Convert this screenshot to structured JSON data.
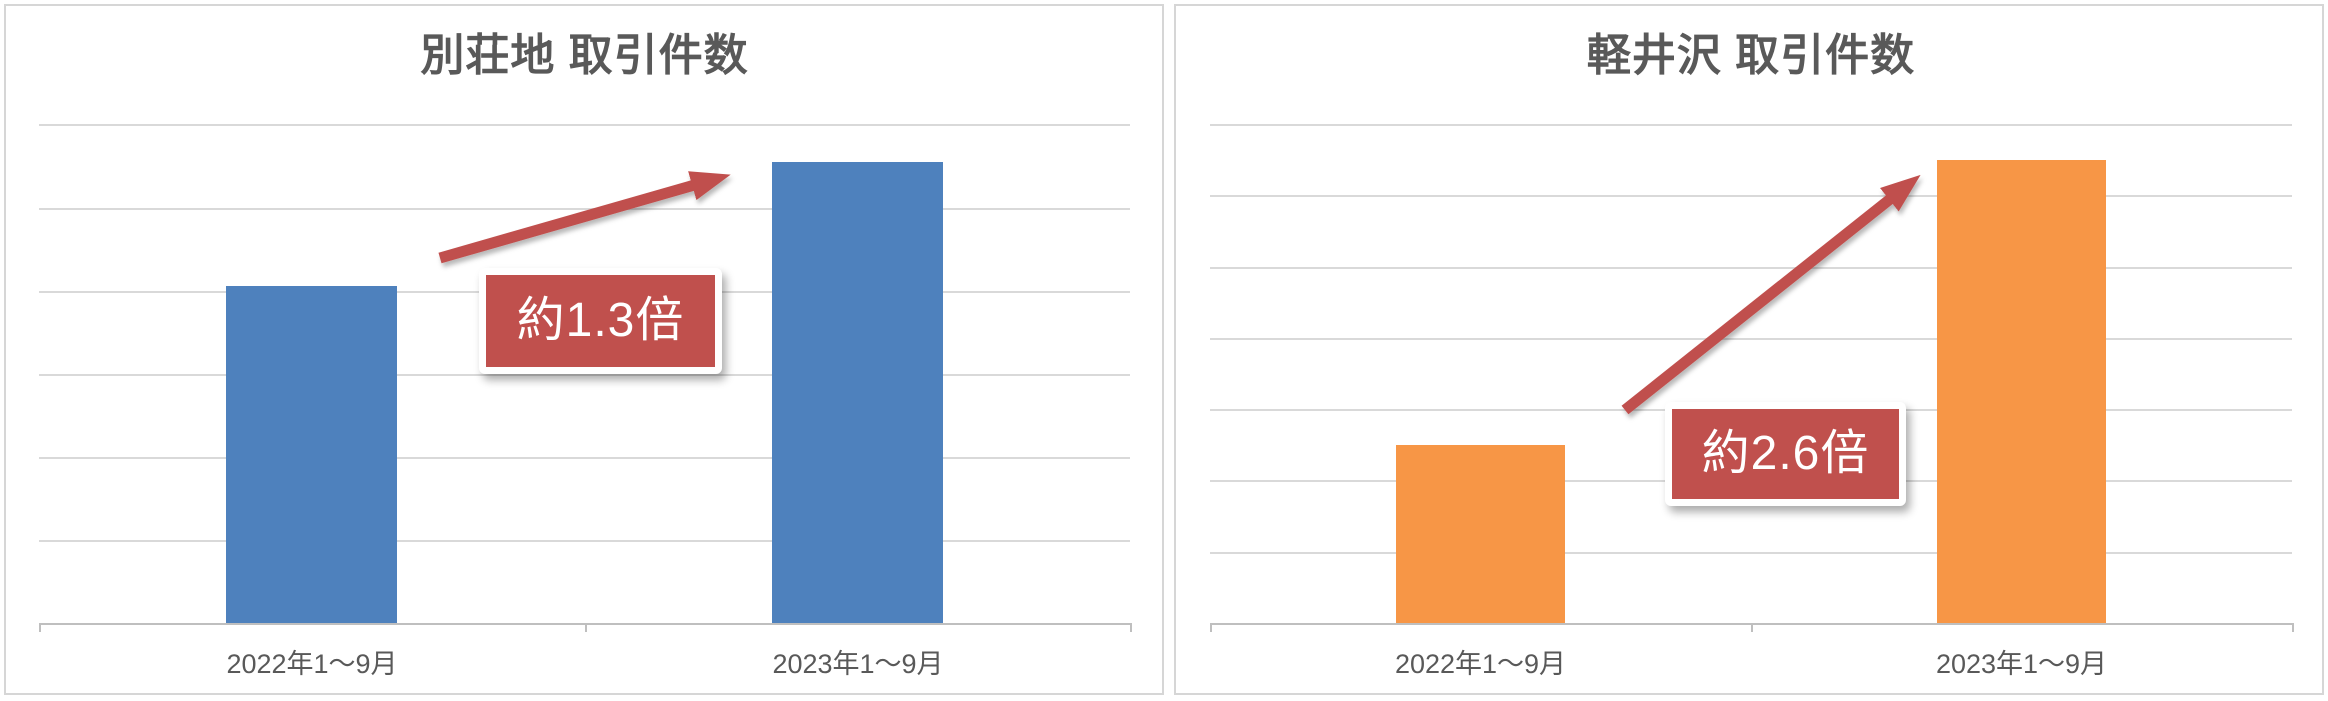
{
  "chart_data": [
    {
      "type": "bar",
      "title": "別荘地 取引件数",
      "categories": [
        "2022年1〜9月",
        "2023年1〜9月"
      ],
      "values": [
        4.05,
        5.55
      ],
      "value_unit": "gridline units (no y-axis tick labels shown)",
      "ylim": [
        0,
        6.6
      ],
      "gridline_step": 1,
      "gridline_count": 6,
      "grid": "horizontal only",
      "legend": "none",
      "bar_color": "#4E81BD",
      "annotation": {
        "label": "約1.3倍",
        "style": "red callout box with rising arrow"
      }
    },
    {
      "type": "bar",
      "title": "軽井沢 取引件数",
      "categories": [
        "2022年1〜9月",
        "2023年1〜9月"
      ],
      "values": [
        2.5,
        6.5
      ],
      "value_unit": "gridline units (no y-axis tick labels shown)",
      "ylim": [
        0,
        7.3
      ],
      "gridline_step": 1,
      "gridline_count": 7,
      "grid": "horizontal only",
      "legend": "none",
      "bar_color": "#F79646",
      "annotation": {
        "label": "約2.6倍",
        "style": "red callout box with rising arrow"
      }
    }
  ],
  "colors": {
    "annotation_fill": "#C0504D",
    "annotation_text": "#FFFFFF",
    "arrow": "#C0504D",
    "gridline": "#D9D9D9",
    "axis_line": "#BFBFBF",
    "text": "#595959",
    "panel_border": "#D6D6D6",
    "panel_bg": "#FFFFFF"
  }
}
